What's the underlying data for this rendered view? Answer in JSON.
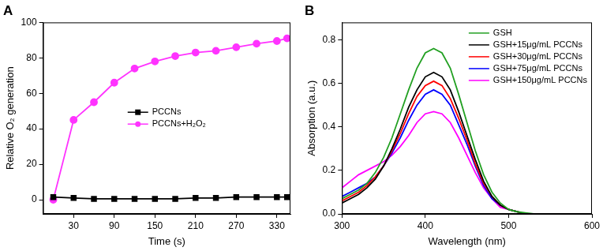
{
  "chart_data": [
    {
      "type": "line",
      "title": "A",
      "x_label": "Time (s)",
      "y_label": "Relative O₂ generation",
      "x": [
        0,
        30,
        60,
        90,
        120,
        150,
        180,
        210,
        240,
        270,
        300,
        330,
        345
      ],
      "series": [
        {
          "name": "PCCNs",
          "color": "#000000",
          "marker": "square",
          "values": [
            1.5,
            1,
            0.5,
            0.5,
            0.5,
            0.5,
            0.5,
            1,
            1,
            1.5,
            1.5,
            1.5,
            1.5
          ]
        },
        {
          "name": "PCCNs+H₂O₂",
          "color": "#ff33ff",
          "marker": "circle",
          "values": [
            0,
            45,
            55,
            66,
            74,
            78,
            81,
            83,
            84,
            86,
            88,
            89.5,
            91
          ]
        }
      ],
      "xlim": [
        -15,
        350
      ],
      "ylim": [
        -8,
        100
      ],
      "xticks": [
        30,
        90,
        150,
        210,
        270,
        330
      ],
      "yticks": [
        0,
        20,
        40,
        60,
        80,
        100
      ],
      "grid": false,
      "legend": "center"
    },
    {
      "type": "line",
      "title": "B",
      "x_label": "Wavelength (nm)",
      "y_label": "Absorption (a.u.)",
      "x": [
        300,
        310,
        320,
        330,
        340,
        350,
        360,
        370,
        380,
        390,
        400,
        410,
        420,
        430,
        440,
        450,
        460,
        470,
        480,
        490,
        500,
        510,
        520,
        530,
        540,
        550,
        560,
        570,
        580,
        590,
        600
      ],
      "series": [
        {
          "name": "GSH",
          "color": "#22a022",
          "values": [
            0.07,
            0.09,
            0.11,
            0.14,
            0.19,
            0.26,
            0.35,
            0.46,
            0.57,
            0.67,
            0.74,
            0.76,
            0.74,
            0.67,
            0.55,
            0.42,
            0.29,
            0.18,
            0.1,
            0.05,
            0.02,
            0.01,
            0.005,
            0,
            0,
            0,
            0,
            0,
            0,
            0,
            0
          ]
        },
        {
          "name": "GSH+15μg/mL PCCNs",
          "color": "#000000",
          "values": [
            0.05,
            0.07,
            0.09,
            0.12,
            0.16,
            0.22,
            0.3,
            0.39,
            0.49,
            0.57,
            0.63,
            0.65,
            0.63,
            0.57,
            0.47,
            0.36,
            0.25,
            0.15,
            0.08,
            0.04,
            0.02,
            0.01,
            0,
            0,
            0,
            0,
            0,
            0,
            0,
            0,
            0
          ]
        },
        {
          "name": "GSH+30μg/mL PCCNs",
          "color": "#ff0000",
          "values": [
            0.06,
            0.08,
            0.1,
            0.13,
            0.17,
            0.22,
            0.29,
            0.37,
            0.46,
            0.54,
            0.59,
            0.61,
            0.59,
            0.53,
            0.44,
            0.34,
            0.23,
            0.14,
            0.08,
            0.04,
            0.02,
            0.01,
            0,
            0,
            0,
            0,
            0,
            0,
            0,
            0,
            0
          ]
        },
        {
          "name": "GSH+75μg/mL PCCNs",
          "color": "#0000ff",
          "values": [
            0.08,
            0.1,
            0.12,
            0.14,
            0.17,
            0.22,
            0.28,
            0.35,
            0.43,
            0.5,
            0.55,
            0.57,
            0.55,
            0.5,
            0.41,
            0.32,
            0.22,
            0.13,
            0.07,
            0.04,
            0.02,
            0.01,
            0,
            0,
            0,
            0,
            0,
            0,
            0,
            0,
            0
          ]
        },
        {
          "name": "GSH+150μg/mL PCCNs",
          "color": "#ff00ff",
          "values": [
            0.12,
            0.15,
            0.18,
            0.2,
            0.22,
            0.24,
            0.27,
            0.31,
            0.36,
            0.42,
            0.46,
            0.47,
            0.46,
            0.42,
            0.35,
            0.27,
            0.19,
            0.12,
            0.07,
            0.03,
            0.02,
            0.01,
            0,
            0,
            0,
            0,
            0,
            0,
            0,
            0,
            0
          ]
        }
      ],
      "xlim": [
        300,
        600
      ],
      "ylim": [
        0,
        0.88
      ],
      "xticks": [
        300,
        400,
        500,
        600
      ],
      "yticks": [
        {
          "value": 0,
          "label": "0.0"
        },
        0.2,
        0.4,
        0.6,
        0.8
      ],
      "grid": false,
      "legend": "upper right"
    }
  ]
}
